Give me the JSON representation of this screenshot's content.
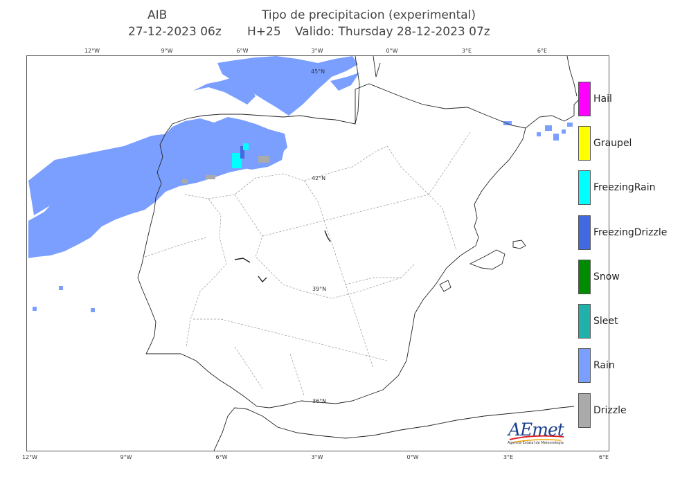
{
  "header": {
    "model": "AIB",
    "product": "Tipo de precipitacion (experimental)",
    "run": "27-12-2023  06z",
    "step": "H+25",
    "valid": "Valido: Thursday 28-12-2023  07z"
  },
  "axes": {
    "lon_top": [
      "12°W",
      "9°W",
      "6°W",
      "3°W",
      "0°W",
      "3°E",
      "6°E"
    ],
    "lon_bottom": [
      "12°W",
      "9°W",
      "6°W",
      "3°W",
      "0°W",
      "3°E",
      "6°E"
    ],
    "lat": [
      "45°N",
      "42°N",
      "39°N",
      "36°N"
    ]
  },
  "legend": [
    {
      "label": "Hail",
      "color": "#ff00ff"
    },
    {
      "label": "Graupel",
      "color": "#ffff00"
    },
    {
      "label": "FreezingRain",
      "color": "#00ffff"
    },
    {
      "label": "FreezingDrizzle",
      "color": "#4169e1"
    },
    {
      "label": "Snow",
      "color": "#008b00"
    },
    {
      "label": "Sleet",
      "color": "#20b2aa"
    },
    {
      "label": "Rain",
      "color": "#7b9fff"
    },
    {
      "label": "Drizzle",
      "color": "#aaaaaa"
    }
  ],
  "logo": {
    "name": "AEmet",
    "subtitle": "Agencia Estatal de Meteorología"
  }
}
